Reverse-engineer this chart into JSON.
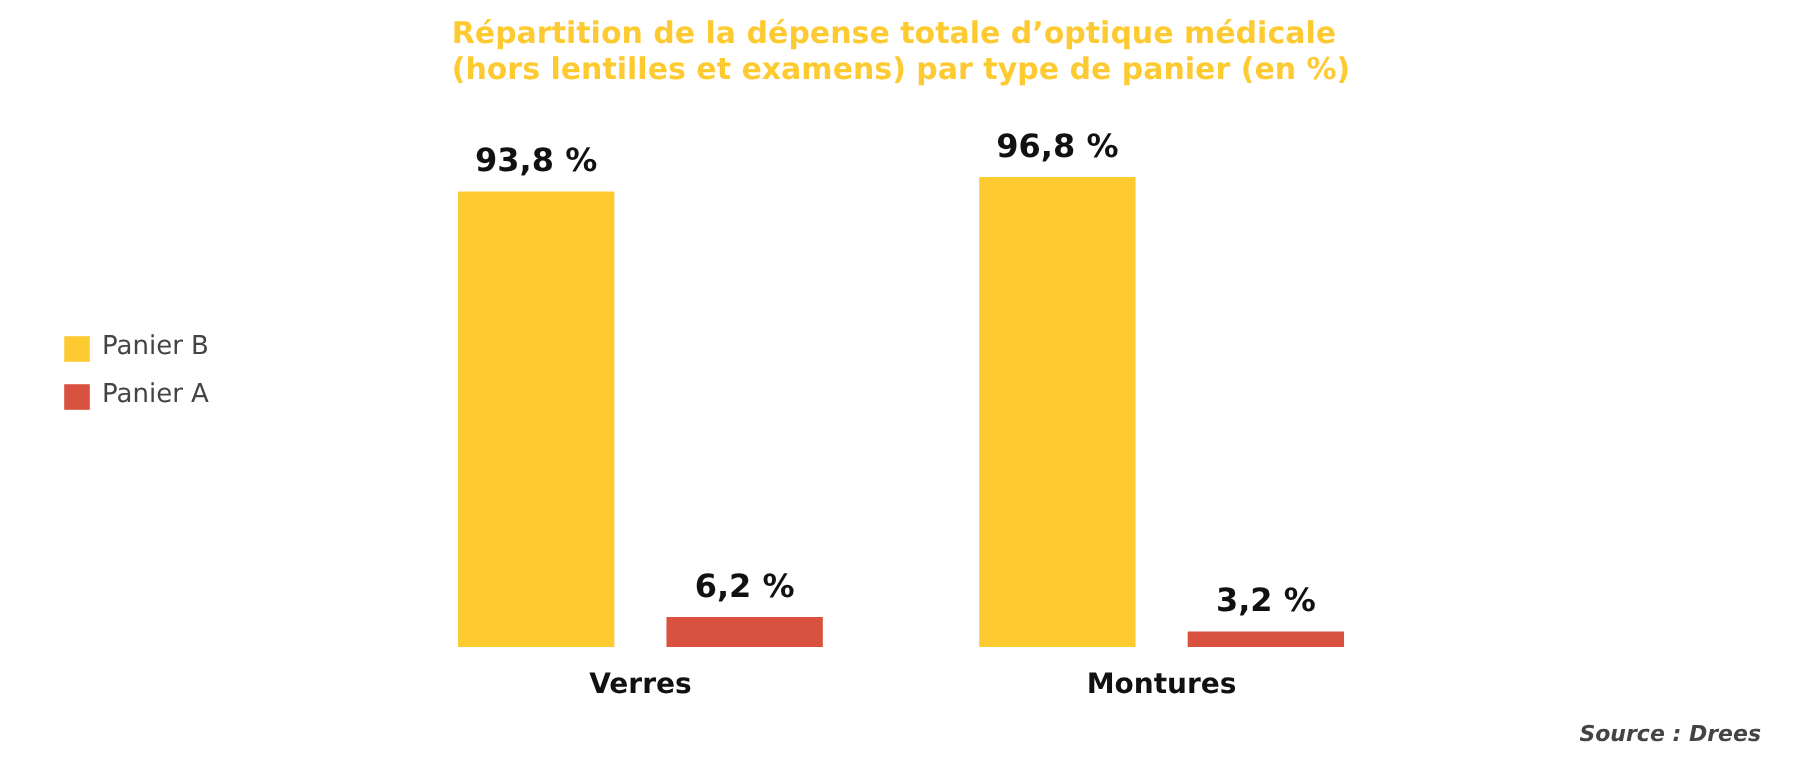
{
  "chart_data": {
    "type": "bar",
    "title": "Répartition de la dépense totale d’optique médicale\n(hors lentilles et examens) par type de panier (en %)",
    "categories": [
      "Verres",
      "Montures"
    ],
    "series": [
      {
        "name": "Panier B",
        "color": "#fdcb31",
        "values": [
          93.8,
          96.8
        ],
        "value_labels": [
          "93,8 %",
          "96,8 %"
        ]
      },
      {
        "name": "Panier A",
        "color": "#d9523f",
        "values": [
          6.2,
          3.2
        ],
        "value_labels": [
          "6,2 %",
          "3,2 %"
        ]
      }
    ],
    "legend": "left",
    "grid": false,
    "annotations": [
      "Source : Drees"
    ]
  }
}
